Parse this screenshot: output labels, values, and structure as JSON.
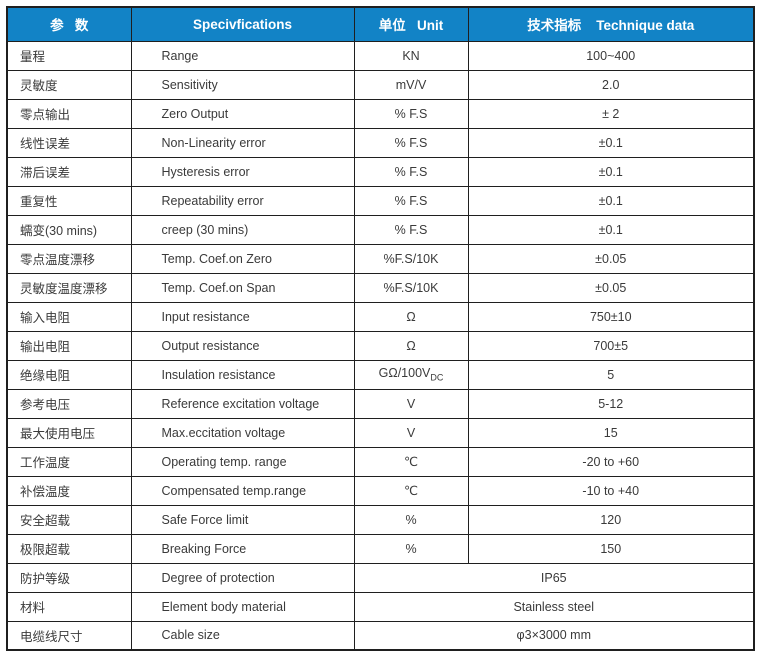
{
  "colors": {
    "header_bg": "#1283c6",
    "header_text": "#ffffff",
    "border": "#1f1f1f",
    "body_text": "#3a3a3a"
  },
  "header": {
    "param": "参   数",
    "spec": "Specivfications",
    "unit": "单位   Unit",
    "data": "技术指标    Technique data"
  },
  "rows": [
    {
      "cn": "量程",
      "en": "Range",
      "unit": "KN",
      "value": "100~400"
    },
    {
      "cn": "灵敏度",
      "en": "Sensitivity",
      "unit": "mV/V",
      "value": "2.0"
    },
    {
      "cn": "零点输出",
      "en": "Zero Output",
      "unit": "% F.S",
      "value": "± 2"
    },
    {
      "cn": "线性误差",
      "en": "Non-Linearity error",
      "unit": "% F.S",
      "value": "±0.1"
    },
    {
      "cn": "滞后误差",
      "en": "Hysteresis error",
      "unit": "% F.S",
      "value": "±0.1"
    },
    {
      "cn": "重复性",
      "en": "Repeatability error",
      "unit": "% F.S",
      "value": "±0.1"
    },
    {
      "cn": "蠕变(30 mins)",
      "en": "creep (30 mins)",
      "unit": "% F.S",
      "value": "±0.1"
    },
    {
      "cn": "零点温度漂移",
      "en": "Temp. Coef.on Zero",
      "unit": "%F.S/10K",
      "value": "±0.05"
    },
    {
      "cn": "灵敏度温度漂移",
      "en": "Temp. Coef.on Span",
      "unit": "%F.S/10K",
      "value": "±0.05"
    },
    {
      "cn": "输入电阻",
      "en": "Input resistance",
      "unit": "Ω",
      "value": "750±10"
    },
    {
      "cn": "输出电阻",
      "en": "Output resistance",
      "unit": "Ω",
      "value": "700±5"
    },
    {
      "cn": "绝缘电阻",
      "en": "Insulation resistance",
      "unit": "GΩ/100V",
      "unit_sub": "DC",
      "value": "5"
    },
    {
      "cn": "参考电压",
      "en": "Reference excitation voltage",
      "unit": "V",
      "value": "5-12"
    },
    {
      "cn": "最大使用电压",
      "en": "Max.eccitation voltage",
      "unit": "V",
      "value": "15"
    },
    {
      "cn": "工作温度",
      "en": "Operating temp. range",
      "unit": "℃",
      "value": "-20 to +60"
    },
    {
      "cn": "补偿温度",
      "en": "Compensated temp.range",
      "unit": "℃",
      "value": "-10 to +40"
    },
    {
      "cn": "安全超载",
      "en": "Safe Force limit",
      "unit": "%",
      "value": "120"
    },
    {
      "cn": "极限超载",
      "en": "Breaking Force",
      "unit": "%",
      "value": "150"
    },
    {
      "cn": "防护等级",
      "en": "Degree of protection",
      "merged": "IP65"
    },
    {
      "cn": "材料",
      "en": "Element body material",
      "merged": "Stainless steel"
    },
    {
      "cn": "电缆线尺寸",
      "en": "Cable size",
      "merged": "φ3×3000 mm"
    }
  ]
}
